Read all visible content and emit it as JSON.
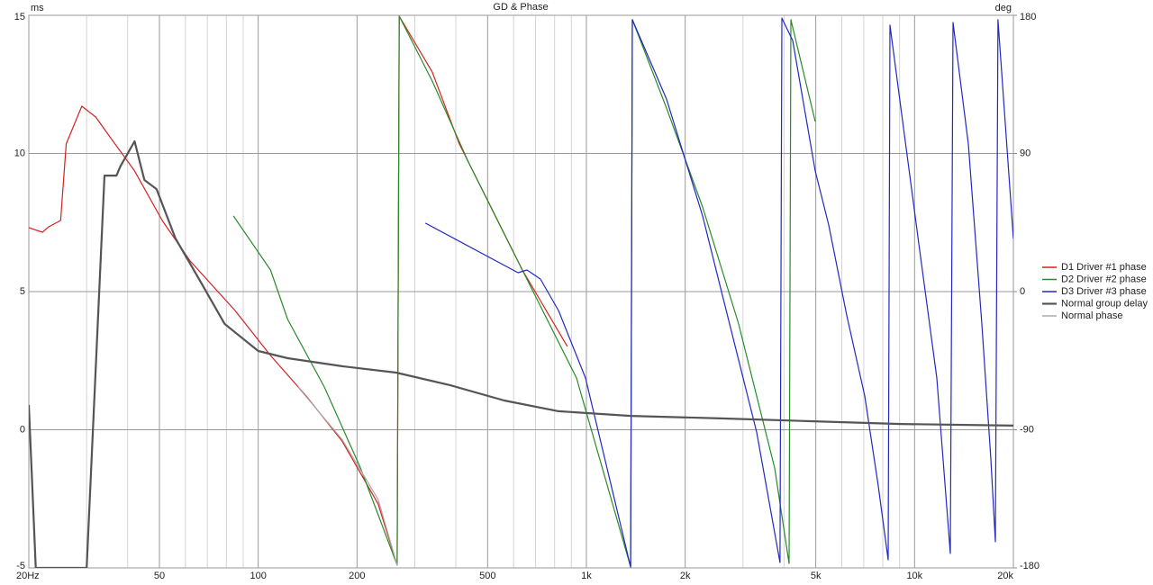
{
  "chart_data": {
    "type": "line",
    "title": "GD & Phase",
    "y_label": "ms",
    "y2_label": "deg",
    "log_x": true,
    "grid": true,
    "legend": "right",
    "xlim": [
      20,
      20000
    ],
    "xticks": [
      {
        "value": 20,
        "label": "20Hz"
      },
      50,
      100,
      200,
      500,
      {
        "value": 1000,
        "label": "1k"
      },
      {
        "value": 2000,
        "label": "2k"
      },
      {
        "value": 5000,
        "label": "5k"
      },
      {
        "value": 10000,
        "label": "10k"
      },
      {
        "value": 20000,
        "label": "20k"
      }
    ],
    "xminor": [
      30,
      40,
      60,
      70,
      80,
      90,
      300,
      400,
      600,
      700,
      800,
      900,
      3000,
      4000,
      6000,
      7000,
      8000,
      9000
    ],
    "ylim": [
      -5,
      15
    ],
    "yticks": [
      -5,
      0,
      5,
      10,
      15
    ],
    "y2lim": [
      -180,
      180
    ],
    "y2ticks": [
      -180,
      -90,
      0,
      90,
      180
    ],
    "series": [
      {
        "name": "D1 Driver #1 phase",
        "color": "#d42020",
        "axis": "y2",
        "x": [
          20,
          22,
          23,
          25,
          26,
          29,
          32,
          35,
          42,
          51,
          62,
          85,
          109,
          140,
          180,
          232,
          265,
          269,
          339,
          410,
          496,
          638,
          875
        ],
        "values": [
          41.6,
          38.7,
          42.2,
          46.3,
          96.2,
          120.8,
          113.7,
          102,
          78.6,
          46.3,
          20,
          -12.3,
          -41.6,
          -68,
          -97.3,
          -138.3,
          -178.2,
          179.4,
          143.1,
          96.2,
          61,
          14.1,
          -35.8
        ]
      },
      {
        "name": "D2 Driver #2 phase",
        "color": "#2a8a2a",
        "axis": "y2",
        "x": [
          84,
          109,
          123,
          159,
          205,
          265,
          269,
          339,
          437,
          562,
          724,
          933,
          1364,
          1380,
          1754,
          2260,
          2910,
          3748,
          4146,
          4198,
          4978
        ],
        "values": [
          49.3,
          14.1,
          -18.2,
          -62.1,
          -114.9,
          -178.2,
          179.4,
          137.2,
          84.4,
          37.5,
          -9.4,
          -56.3,
          -179.4,
          177.1,
          119.6,
          55.1,
          -21.1,
          -114.9,
          -177.1,
          177.1,
          110.8
        ]
      },
      {
        "name": "D3 Driver #3 phase",
        "color": "#2228c0",
        "axis": "y2",
        "x": [
          323,
          619,
          659,
          724,
          822,
          994,
          1364,
          1380,
          1754,
          2260,
          2564,
          3302,
          3890,
          3940,
          4252,
          4978,
          5474,
          6210,
          7048,
          7752,
          8310,
          8414,
          9080,
          10296,
          11686,
          12850,
          13092,
          14580,
          16032,
          17080,
          17620,
          17950,
          20000
        ],
        "values": [
          44.6,
          12.3,
          14.1,
          8.2,
          -12.3,
          -56.3,
          -179.4,
          177.1,
          125.5,
          49.3,
          2.3,
          -91.5,
          -176.5,
          178.2,
          163.6,
          78.6,
          43.4,
          -15.2,
          -68,
          -126.6,
          -174.7,
          173.6,
          119.6,
          31.7,
          -56.3,
          -170.6,
          175.3,
          96.2,
          -21.1,
          -109.1,
          -163,
          177.1,
          34.6
        ]
      },
      {
        "name": "Normal group delay",
        "color": "#555555",
        "axis": "y",
        "width": 2.2,
        "x": [
          20,
          21,
          30,
          34,
          37,
          38,
          42,
          45,
          49,
          56,
          66,
          79,
          100,
          123,
          180,
          263,
          385,
          562,
          822,
          1364,
          2564,
          4820,
          9080,
          20000
        ],
        "values": [
          0.9,
          -5,
          -5,
          9.2,
          9.2,
          9.53,
          10.44,
          9.04,
          8.71,
          6.92,
          5.46,
          3.83,
          2.85,
          2.59,
          2.3,
          2.07,
          1.61,
          1.06,
          0.67,
          0.5,
          0.41,
          0.31,
          0.21,
          0.15
        ]
      },
      {
        "name": "Normal phase",
        "color": "#aaaaaa",
        "axis": "y2",
        "x": [
          132,
          180,
          232,
          265
        ],
        "values": [
          -62.1,
          -96.2,
          -135.4,
          -178.2
        ]
      }
    ]
  }
}
